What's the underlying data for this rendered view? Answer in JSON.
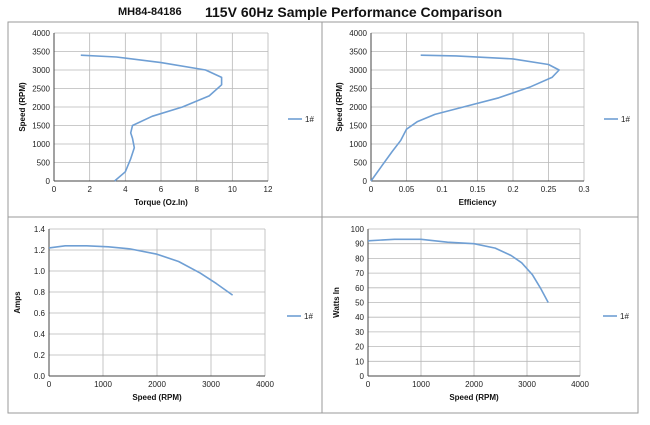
{
  "header": {
    "part_number": "MH84-84186",
    "title": "115V 60Hz Sample Performance Comparison"
  },
  "colors": {
    "series": "#6f9fd4",
    "grid": "#b8b8b8",
    "axis": "#444444",
    "frame": "#9a9a9a"
  },
  "chart_data": [
    {
      "type": "line",
      "xlabel": "Torque (Oz.In)",
      "ylabel": "Speed (RPM)",
      "xlim": [
        0,
        12
      ],
      "ylim": [
        0,
        4000
      ],
      "xticks": [
        0,
        2,
        4,
        6,
        8,
        10,
        12
      ],
      "yticks": [
        0,
        500,
        1000,
        1500,
        2000,
        2500,
        3000,
        3500,
        4000
      ],
      "xtick_labels": [
        "0",
        "2",
        "4",
        "6",
        "8",
        "10",
        "12"
      ],
      "ytick_labels": [
        "0",
        "500",
        "1000",
        "1500",
        "2000",
        "2500",
        "3000",
        "3500",
        "4000"
      ],
      "grid": true,
      "legend_position": "right",
      "series": [
        {
          "name": "1#",
          "x": [
            3.4,
            4.0,
            4.3,
            4.5,
            4.4,
            4.3,
            4.4,
            5.5,
            7.2,
            8.7,
            9.4,
            9.4,
            8.5,
            6.0,
            3.5,
            1.5
          ],
          "y": [
            0,
            250,
            600,
            900,
            1150,
            1300,
            1500,
            1750,
            2000,
            2300,
            2600,
            2800,
            3000,
            3200,
            3350,
            3400
          ]
        }
      ]
    },
    {
      "type": "line",
      "xlabel": "Efficiency",
      "ylabel": "Speed (RPM)",
      "xlim": [
        0,
        0.3
      ],
      "ylim": [
        0,
        4000
      ],
      "xticks": [
        0,
        0.05,
        0.1,
        0.15,
        0.2,
        0.25,
        0.3
      ],
      "yticks": [
        0,
        500,
        1000,
        1500,
        2000,
        2500,
        3000,
        3500,
        4000
      ],
      "xtick_labels": [
        "0",
        "0.05",
        "0.1",
        "0.15",
        "0.2",
        "0.25",
        "0.3"
      ],
      "ytick_labels": [
        "0",
        "500",
        "1000",
        "1500",
        "2000",
        "2500",
        "3000",
        "3500",
        "4000"
      ],
      "grid": true,
      "legend_position": "right",
      "series": [
        {
          "name": "1#",
          "x": [
            0.0,
            0.015,
            0.03,
            0.042,
            0.05,
            0.065,
            0.09,
            0.13,
            0.18,
            0.225,
            0.255,
            0.265,
            0.25,
            0.2,
            0.12,
            0.07
          ],
          "y": [
            0,
            400,
            800,
            1100,
            1400,
            1600,
            1800,
            2000,
            2250,
            2550,
            2800,
            3000,
            3150,
            3300,
            3380,
            3400
          ]
        }
      ]
    },
    {
      "type": "line",
      "xlabel": "Speed (RPM)",
      "ylabel": "Amps",
      "xlim": [
        0,
        4000
      ],
      "ylim": [
        0,
        1.4
      ],
      "xticks": [
        0,
        1000,
        2000,
        3000,
        4000
      ],
      "yticks": [
        0,
        0.2,
        0.4,
        0.6,
        0.8,
        1.0,
        1.2,
        1.4
      ],
      "xtick_labels": [
        "0",
        "1000",
        "2000",
        "3000",
        "4000"
      ],
      "ytick_labels": [
        "0.0",
        "0.2",
        "0.4",
        "0.6",
        "0.8",
        "1.0",
        "1.2",
        "1.4"
      ],
      "grid": true,
      "legend_position": "right",
      "series": [
        {
          "name": "1#",
          "x": [
            0,
            300,
            700,
            1100,
            1500,
            2000,
            2400,
            2800,
            3100,
            3400
          ],
          "y": [
            1.22,
            1.24,
            1.24,
            1.23,
            1.21,
            1.16,
            1.09,
            0.98,
            0.88,
            0.77
          ]
        }
      ]
    },
    {
      "type": "line",
      "xlabel": "Speed (RPM)",
      "ylabel": "Watts In",
      "xlim": [
        0,
        4000
      ],
      "ylim": [
        0,
        100
      ],
      "xticks": [
        0,
        1000,
        2000,
        3000,
        4000
      ],
      "yticks": [
        0,
        10,
        20,
        30,
        40,
        50,
        60,
        70,
        80,
        90,
        100
      ],
      "xtick_labels": [
        "0",
        "1000",
        "2000",
        "3000",
        "4000"
      ],
      "ytick_labels": [
        "0",
        "10",
        "20",
        "30",
        "40",
        "50",
        "60",
        "70",
        "80",
        "90",
        "100"
      ],
      "grid": true,
      "legend_position": "right",
      "series": [
        {
          "name": "1#",
          "x": [
            0,
            500,
            1000,
            1500,
            2000,
            2400,
            2700,
            2900,
            3100,
            3250,
            3400
          ],
          "y": [
            92,
            93,
            93,
            91,
            90,
            87,
            82,
            77,
            69,
            60,
            50
          ]
        }
      ]
    }
  ]
}
